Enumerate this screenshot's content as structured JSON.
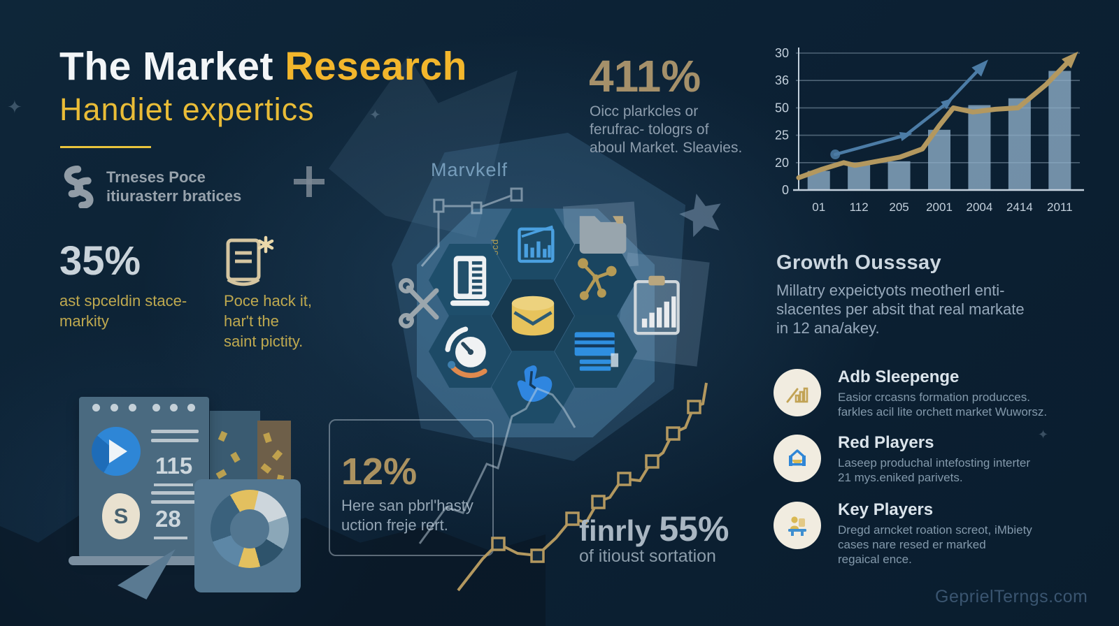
{
  "meta": {
    "watermark": "GeprielTerngs.com",
    "colors": {
      "accent_gold": "#f2b62c",
      "tan": "#a5906a",
      "background": "#0c2134",
      "bar_blue": "#8fb0c9"
    }
  },
  "header": {
    "title_white": "The Market",
    "title_accent": "Research",
    "subtitle": "Handiet expertics",
    "brand_line1": "Trneses Poce",
    "brand_line2": "itiurasterr bratices"
  },
  "stats": {
    "s411": {
      "value": "411%",
      "l1": "Oicc plarkcles or",
      "l2": "ferufrac- tologrs of",
      "l3": "aboul Market. Sleavies."
    },
    "s35": {
      "value": "35%",
      "l1": "ast spceldin stace-",
      "l2": "markity"
    },
    "note": {
      "l1": "Poce hack it,",
      "l2": "har't the",
      "l3": "saint pictity."
    },
    "s12": {
      "value": "12%",
      "l1": "Here san pbrl'hasty",
      "l2": "uction freje rert."
    },
    "s55": {
      "prefix": "finrly ",
      "value": "55%",
      "sub": "of itioust sortation"
    }
  },
  "center": {
    "label": "Marvkelf",
    "doc_label": "Docd"
  },
  "growth": {
    "heading": "Growth Ousssay",
    "l1": "Millatry expeictyots meotherl enti-",
    "l2": "slacentes per absit that real markate",
    "l3": "in 12 ana/akey."
  },
  "players": [
    {
      "title": "Adb Sleepenge",
      "d1": "Easior crcasns formation producces.",
      "d2": "farkles acil lite orchett market Wuworsz.",
      "d3": ""
    },
    {
      "title": "Red Players",
      "d1": "Laseep produchal intefosting interter",
      "d2": "21 mys.eniked parivets.",
      "d3": ""
    },
    {
      "title": "Key Players",
      "d1": "Dregd arncket roation screot, iMbiety",
      "d2": "cases nare resed er marked",
      "d3": "regaical ence."
    }
  ],
  "panel": {
    "v1": "115",
    "v2": "28",
    "sym": "S"
  },
  "chart_data": [
    {
      "id": "growth-chart",
      "type": "bar",
      "title": "",
      "categories": [
        "01",
        "112",
        "205",
        "2001",
        "2004",
        "2414",
        "2011"
      ],
      "y_ticks": [
        "30",
        "36",
        "50",
        "25",
        "20",
        "0"
      ],
      "bar_values_pct": [
        14,
        20,
        21,
        44,
        62,
        67,
        87
      ],
      "bar_color": "#8fb0c9",
      "grid": "horizontal",
      "legend": "none",
      "lines": [
        {
          "name": "gold-trend",
          "color": "#b3985f",
          "width": 7,
          "arrow": true,
          "points_pct": [
            [
              0,
              9
            ],
            [
              8,
              15
            ],
            [
              16,
              20
            ],
            [
              20,
              18
            ],
            [
              28,
              21
            ],
            [
              36,
              24
            ],
            [
              44,
              30
            ],
            [
              50,
              47
            ],
            [
              55,
              60
            ],
            [
              62,
              57
            ],
            [
              70,
              59
            ],
            [
              78,
              60
            ],
            [
              88,
              77
            ],
            [
              97,
              96
            ]
          ]
        },
        {
          "name": "blue-trend",
          "color": "#4c7ca6",
          "width": 4.5,
          "arrow": true,
          "start_dot": true,
          "marker_indices": [
            1,
            2
          ],
          "points_pct": [
            [
              13,
              26
            ],
            [
              38,
              40
            ],
            [
              53,
              64
            ],
            [
              65,
              90
            ]
          ]
        }
      ]
    },
    {
      "id": "donut-chart",
      "type": "donut",
      "hole_color": "#527690",
      "slices": [
        {
          "color": "#e3c05f",
          "pct": 12
        },
        {
          "color": "#cdd6dc",
          "pct": 16
        },
        {
          "color": "#8ba7b8",
          "pct": 14
        },
        {
          "color": "#2e536b",
          "pct": 12
        },
        {
          "color": "#e3c05f",
          "pct": 9
        },
        {
          "color": "#5d87a6",
          "pct": 15
        },
        {
          "color": "#3a617c",
          "pct": 22
        }
      ]
    }
  ]
}
